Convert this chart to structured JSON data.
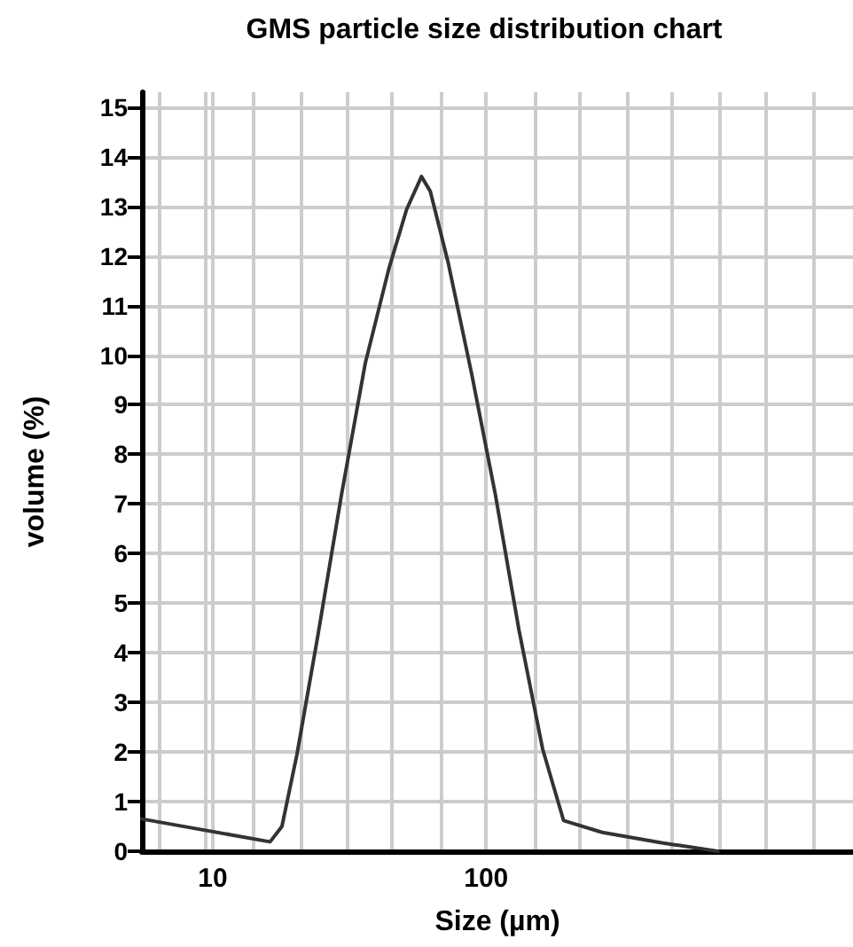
{
  "chart_data": {
    "type": "line",
    "title": "GMS particle size distribution chart",
    "xlabel": "Size (µm)",
    "ylabel": "volume (%)",
    "series": [
      {
        "color": "#333333",
        "x": [
          5.5,
          16.2,
          17.9,
          20.3,
          24.2,
          29.6,
          36.1,
          44.1,
          51.2,
          58.0,
          62.5,
          72.6,
          88.7,
          108,
          132,
          161,
          192,
          266,
          439,
          705
        ],
        "values": [
          0.65,
          0.19,
          0.5,
          1.94,
          4.33,
          7.2,
          9.83,
          11.75,
          12.94,
          13.6,
          13.3,
          11.87,
          9.6,
          7.2,
          4.45,
          2.06,
          0.62,
          0.38,
          0.17,
          0
        ]
      }
    ],
    "log": "x",
    "xlim": [
      5.5,
      2200
    ],
    "xticks": [
      {
        "value": 6.4,
        "label": null
      },
      {
        "value": 9.4,
        "label": null
      },
      10,
      {
        "value": 14,
        "label": null
      },
      {
        "value": 21,
        "label": null
      },
      {
        "value": 31,
        "label": null
      },
      {
        "value": 45,
        "label": null
      },
      {
        "value": 68,
        "label": null
      },
      100,
      {
        "value": 150,
        "label": null
      },
      {
        "value": 220,
        "label": null
      },
      {
        "value": 330,
        "label": null
      },
      {
        "value": 480,
        "label": null
      },
      {
        "value": 720,
        "label": null
      },
      {
        "value": 1060,
        "label": null
      },
      {
        "value": 1580,
        "label": null
      }
    ],
    "ylim": [
      0,
      15.3
    ],
    "yticks": [
      0,
      1,
      2,
      3,
      4,
      5,
      6,
      7,
      8,
      9,
      10,
      11,
      12,
      13,
      14,
      15
    ],
    "grid": true,
    "marker": "none",
    "line_style": "solid"
  }
}
